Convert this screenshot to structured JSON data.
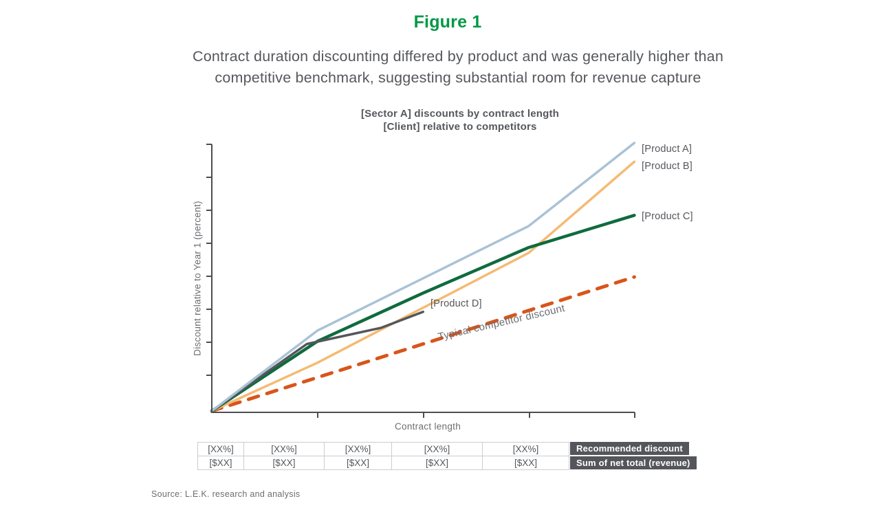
{
  "figure": {
    "label": "Figure 1",
    "accent_color": "#009845"
  },
  "headline": {
    "line1": "Contract duration discounting differed by product and was generally higher than",
    "line2": "competitive benchmark, suggesting substantial room for revenue capture"
  },
  "chart_data": {
    "type": "line",
    "title_lines": [
      "[Sector A] discounts by contract length",
      "[Client] relative to competitors"
    ],
    "xlabel": "Contract length",
    "ylabel": "Discount relative to Year 1 (percent)",
    "axis_tick_values_labeled": false,
    "x_range_contract_length_steps": [
      0,
      4
    ],
    "y_range_relative_discount": [
      0,
      100
    ],
    "legend_position": "line-end-labels",
    "grid": false,
    "series": [
      {
        "name": "[Product A]",
        "color": "#a9c2d6",
        "points": [
          [
            0,
            0
          ],
          [
            1,
            30
          ],
          [
            3,
            69
          ],
          [
            4,
            100
          ]
        ]
      },
      {
        "name": "[Product B]",
        "color": "#f5ba72",
        "points": [
          [
            0,
            0
          ],
          [
            1,
            18
          ],
          [
            3,
            59
          ],
          [
            4,
            93
          ]
        ]
      },
      {
        "name": "[Product C]",
        "color": "#0f6b3e",
        "points": [
          [
            0,
            0
          ],
          [
            1,
            26
          ],
          [
            2,
            44
          ],
          [
            3,
            61
          ],
          [
            4,
            73
          ]
        ]
      },
      {
        "name": "[Product D]",
        "color": "#54565b",
        "points": [
          [
            0,
            0
          ],
          [
            0.9,
            25
          ],
          [
            1.6,
            31
          ],
          [
            2,
            37
          ]
        ]
      }
    ],
    "competitor": {
      "name": "Typical competitor discount",
      "color": "#d8551b",
      "style": "dashed",
      "points": [
        [
          0,
          0
        ],
        [
          4,
          50
        ]
      ]
    }
  },
  "table": {
    "rows": [
      {
        "values": [
          "[XX%]",
          "[XX%]",
          "[XX%]",
          "[XX%]",
          "[XX%]"
        ],
        "label": "Recommended discount"
      },
      {
        "values": [
          "[$XX]",
          "[$XX]",
          "[$XX]",
          "[$XX]",
          "[$XX]"
        ],
        "label": "Sum of net total (revenue)"
      }
    ],
    "label_bg_color": "#54565b"
  },
  "source": "Source: L.E.K. research and analysis"
}
